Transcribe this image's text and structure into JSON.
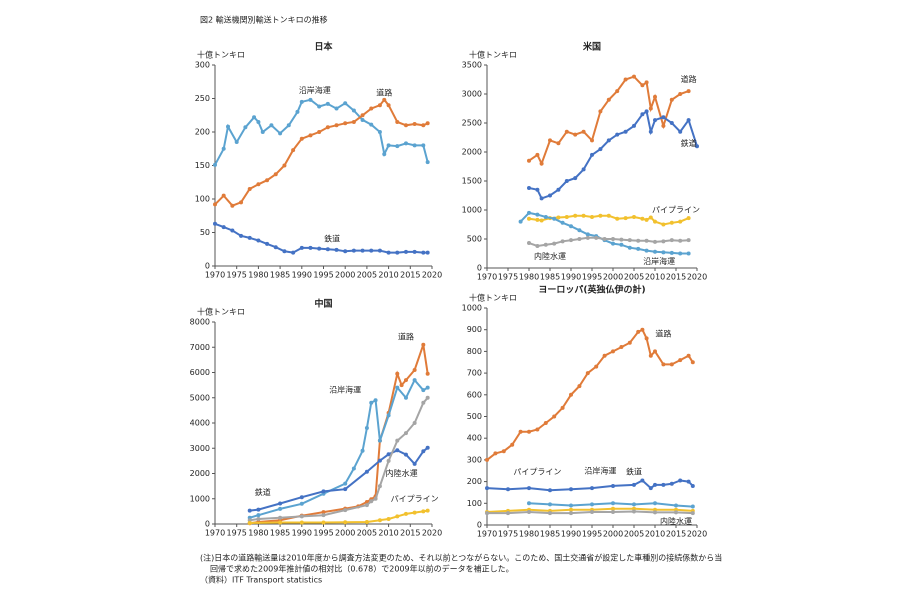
{
  "figure_title": "図2  輸送機関別輸送トンキロの推移",
  "notes": [
    "(注)日本の道路輸送量は2010年度から調査方法変更のため、それ以前とつながらない。このため、国土交通省が設定した車種別の接続係数から当",
    "回帰で求めた2009年推計値の相対比（0.678）で2009年以前のデータを補正した。",
    "（資料）ITF Transport statistics"
  ],
  "chart_data": [
    {
      "type": "line",
      "title": "日本",
      "y_label": "十億トンキロ",
      "xlim": [
        1970,
        2020
      ],
      "xticks": [
        1970,
        1975,
        1980,
        1985,
        1990,
        1995,
        2000,
        2005,
        2010,
        2015,
        2020
      ],
      "ylim": [
        0,
        300
      ],
      "yticks": [
        0,
        50,
        100,
        150,
        200,
        250,
        300
      ],
      "series": [
        {
          "name": "沿岸海運",
          "color": "#5ba3d0",
          "x": [
            1970,
            1972,
            1973,
            1975,
            1977,
            1979,
            1980,
            1981,
            1983,
            1985,
            1987,
            1989,
            1990,
            1992,
            1994,
            1996,
            1998,
            2000,
            2002,
            2004,
            2006,
            2008,
            2009,
            2010,
            2012,
            2014,
            2016,
            2018,
            2019
          ],
          "values": [
            151,
            175,
            208,
            185,
            207,
            222,
            215,
            200,
            210,
            198,
            210,
            230,
            245,
            248,
            238,
            242,
            235,
            243,
            232,
            218,
            211,
            200,
            167,
            180,
            179,
            183,
            180,
            180,
            155
          ]
        },
        {
          "name": "道路",
          "color": "#e07b39",
          "x": [
            1970,
            1972,
            1974,
            1976,
            1978,
            1980,
            1982,
            1984,
            1986,
            1988,
            1990,
            1992,
            1994,
            1996,
            1998,
            2000,
            2002,
            2004,
            2006,
            2008,
            2009,
            2010,
            2012,
            2014,
            2016,
            2018,
            2019
          ],
          "values": [
            92,
            105,
            90,
            95,
            115,
            122,
            128,
            137,
            150,
            173,
            190,
            195,
            200,
            207,
            210,
            213,
            215,
            225,
            235,
            240,
            248,
            240,
            215,
            210,
            212,
            210,
            213
          ]
        },
        {
          "name": "鉄道",
          "color": "#4472c4",
          "x": [
            1970,
            1972,
            1974,
            1976,
            1978,
            1980,
            1982,
            1984,
            1986,
            1988,
            1990,
            1992,
            1994,
            1996,
            1998,
            2000,
            2002,
            2004,
            2006,
            2008,
            2010,
            2012,
            2014,
            2016,
            2018,
            2019
          ],
          "values": [
            63,
            58,
            53,
            45,
            42,
            38,
            33,
            28,
            22,
            20,
            27,
            27,
            26,
            25,
            24,
            22,
            23,
            23,
            23,
            23,
            20,
            20,
            21,
            21,
            20,
            20
          ]
        }
      ]
    },
    {
      "type": "line",
      "title": "米国",
      "y_label": "十億トンキロ",
      "xlim": [
        1970,
        2020
      ],
      "xticks": [
        1970,
        1975,
        1980,
        1985,
        1990,
        1995,
        2000,
        2005,
        2010,
        2015,
        2020
      ],
      "ylim": [
        0,
        3500
      ],
      "yticks": [
        0,
        500,
        1000,
        1500,
        2000,
        2500,
        3000,
        3500
      ],
      "series": [
        {
          "name": "道路",
          "color": "#e07b39",
          "x": [
            1980,
            1982,
            1983,
            1985,
            1987,
            1989,
            1991,
            1993,
            1995,
            1997,
            1999,
            2001,
            2003,
            2005,
            2007,
            2008,
            2009,
            2010,
            2012,
            2014,
            2016,
            2018
          ],
          "values": [
            1850,
            1950,
            1800,
            2200,
            2150,
            2350,
            2300,
            2350,
            2200,
            2700,
            2900,
            3050,
            3250,
            3300,
            3150,
            3200,
            2750,
            2950,
            2450,
            2900,
            3000,
            3050
          ]
        },
        {
          "name": "鉄道",
          "color": "#4472c4",
          "x": [
            1980,
            1982,
            1983,
            1985,
            1987,
            1989,
            1991,
            1993,
            1995,
            1997,
            1999,
            2001,
            2003,
            2005,
            2007,
            2008,
            2009,
            2010,
            2012,
            2014,
            2016,
            2018,
            2020
          ],
          "values": [
            1380,
            1350,
            1200,
            1250,
            1350,
            1500,
            1550,
            1700,
            1950,
            2050,
            2200,
            2300,
            2350,
            2450,
            2650,
            2700,
            2350,
            2550,
            2600,
            2500,
            2350,
            2550,
            2100
          ]
        },
        {
          "name": "パイプライン",
          "color": "#f2c12e",
          "x": [
            1980,
            1982,
            1983,
            1985,
            1987,
            1989,
            1991,
            1993,
            1995,
            1997,
            1999,
            2001,
            2003,
            2005,
            2007,
            2008,
            2009,
            2010,
            2012,
            2014,
            2016,
            2018
          ],
          "values": [
            850,
            830,
            820,
            860,
            870,
            880,
            900,
            900,
            880,
            900,
            900,
            850,
            860,
            880,
            850,
            830,
            870,
            800,
            750,
            780,
            800,
            860
          ]
        },
        {
          "name": "沿岸海運",
          "color": "#5ba3d0",
          "x": [
            1978,
            1980,
            1982,
            1984,
            1986,
            1988,
            1990,
            1992,
            1994,
            1996,
            1998,
            2000,
            2002,
            2004,
            2006,
            2008,
            2010,
            2012,
            2014,
            2016,
            2018
          ],
          "values": [
            800,
            950,
            920,
            880,
            850,
            780,
            720,
            650,
            580,
            550,
            480,
            420,
            400,
            350,
            330,
            300,
            280,
            270,
            260,
            250,
            250
          ]
        },
        {
          "name": "内陸水運",
          "color": "#a5a5a5",
          "x": [
            1980,
            1982,
            1984,
            1986,
            1988,
            1990,
            1992,
            1994,
            1996,
            1998,
            2000,
            2002,
            2004,
            2006,
            2008,
            2010,
            2012,
            2014,
            2016,
            2018
          ],
          "values": [
            430,
            380,
            400,
            420,
            460,
            480,
            500,
            520,
            520,
            500,
            500,
            490,
            480,
            470,
            470,
            450,
            460,
            480,
            470,
            480
          ]
        }
      ]
    },
    {
      "type": "line",
      "title": "中国",
      "y_label": "十億トンキロ",
      "xlim": [
        1970,
        2020
      ],
      "xticks": [
        1970,
        1975,
        1980,
        1985,
        1990,
        1995,
        2000,
        2005,
        2010,
        2015,
        2020
      ],
      "ylim": [
        0,
        8000
      ],
      "yticks": [
        0,
        1000,
        2000,
        3000,
        4000,
        5000,
        6000,
        7000,
        8000
      ],
      "series": [
        {
          "name": "道路",
          "color": "#e07b39",
          "x": [
            1978,
            1980,
            1985,
            1990,
            1995,
            2000,
            2003,
            2005,
            2006,
            2007,
            2008,
            2010,
            2012,
            2013,
            2014,
            2016,
            2018,
            2019
          ],
          "values": [
            30,
            80,
            150,
            330,
            470,
            610,
            700,
            870,
            980,
            1100,
            3300,
            4400,
            5950,
            5500,
            5700,
            6100,
            7100,
            5950
          ]
        },
        {
          "name": "沿岸海運",
          "color": "#5ba3d0",
          "x": [
            1978,
            1980,
            1985,
            1990,
            1995,
            2000,
            2002,
            2004,
            2005,
            2006,
            2007,
            2008,
            2010,
            2012,
            2014,
            2016,
            2018,
            2019
          ],
          "values": [
            250,
            350,
            600,
            800,
            1200,
            1600,
            2200,
            2900,
            3800,
            4800,
            4900,
            3300,
            4300,
            5400,
            5000,
            5700,
            5300,
            5400
          ]
        },
        {
          "name": "鉄道",
          "color": "#4472c4",
          "x": [
            1978,
            1980,
            1985,
            1990,
            1995,
            2000,
            2005,
            2008,
            2010,
            2012,
            2014,
            2016,
            2018,
            2019
          ],
          "values": [
            530,
            570,
            810,
            1060,
            1290,
            1380,
            2070,
            2510,
            2760,
            2920,
            2750,
            2380,
            2880,
            3020
          ]
        },
        {
          "name": "内陸水運",
          "color": "#a5a5a5",
          "x": [
            1978,
            1980,
            1985,
            1990,
            1995,
            2000,
            2005,
            2006,
            2007,
            2008,
            2010,
            2012,
            2014,
            2016,
            2018,
            2019
          ],
          "values": [
            150,
            200,
            250,
            300,
            350,
            550,
            750,
            900,
            1000,
            1500,
            2500,
            3300,
            3600,
            4000,
            4800,
            5000
          ]
        },
        {
          "name": "パイプライン",
          "color": "#f2c12e",
          "x": [
            1978,
            1985,
            1990,
            1995,
            2000,
            2005,
            2008,
            2010,
            2012,
            2014,
            2016,
            2018,
            2019
          ],
          "values": [
            40,
            60,
            60,
            60,
            70,
            80,
            150,
            200,
            300,
            400,
            450,
            500,
            530
          ]
        }
      ]
    },
    {
      "type": "line",
      "title": "ヨーロッパ(英独仏伊の計)",
      "y_label": "十億トンキロ",
      "xlim": [
        1970,
        2020
      ],
      "xticks": [
        1970,
        1975,
        1980,
        1985,
        1990,
        1995,
        2000,
        2005,
        2010,
        2015,
        2020
      ],
      "ylim": [
        0,
        1000
      ],
      "yticks": [
        0,
        100,
        200,
        300,
        400,
        500,
        600,
        700,
        800,
        900,
        1000
      ],
      "series": [
        {
          "name": "道路",
          "color": "#e07b39",
          "x": [
            1970,
            1972,
            1974,
            1976,
            1978,
            1980,
            1982,
            1984,
            1986,
            1988,
            1990,
            1992,
            1994,
            1996,
            1998,
            2000,
            2002,
            2004,
            2006,
            2007,
            2008,
            2009,
            2010,
            2012,
            2014,
            2016,
            2018,
            2019
          ],
          "values": [
            300,
            330,
            340,
            370,
            430,
            430,
            440,
            470,
            500,
            540,
            600,
            640,
            700,
            730,
            780,
            800,
            820,
            840,
            890,
            900,
            860,
            780,
            800,
            740,
            740,
            760,
            780,
            750
          ]
        },
        {
          "name": "鉄道",
          "color": "#4472c4",
          "x": [
            1970,
            1975,
            1980,
            1985,
            1990,
            1995,
            2000,
            2005,
            2007,
            2009,
            2010,
            2012,
            2014,
            2016,
            2018,
            2019
          ],
          "values": [
            170,
            165,
            170,
            160,
            165,
            170,
            180,
            185,
            205,
            170,
            185,
            185,
            190,
            205,
            200,
            180
          ]
        },
        {
          "name": "沿岸海運",
          "color": "#5ba3d0",
          "x": [
            1980,
            1985,
            1990,
            1995,
            2000,
            2005,
            2010,
            2015,
            2019
          ],
          "values": [
            100,
            95,
            90,
            95,
            100,
            95,
            100,
            90,
            85
          ]
        },
        {
          "name": "パイプライン",
          "color": "#f2c12e",
          "x": [
            1970,
            1975,
            1980,
            1985,
            1990,
            1995,
            2000,
            2005,
            2010,
            2015,
            2019
          ],
          "values": [
            60,
            65,
            70,
            65,
            70,
            70,
            75,
            75,
            70,
            70,
            65
          ]
        },
        {
          "name": "内陸水運",
          "color": "#a5a5a5",
          "x": [
            1970,
            1975,
            1980,
            1985,
            1990,
            1995,
            2000,
            2005,
            2010,
            2015,
            2019
          ],
          "values": [
            55,
            55,
            60,
            55,
            55,
            60,
            60,
            62,
            58,
            58,
            55
          ]
        }
      ]
    }
  ]
}
